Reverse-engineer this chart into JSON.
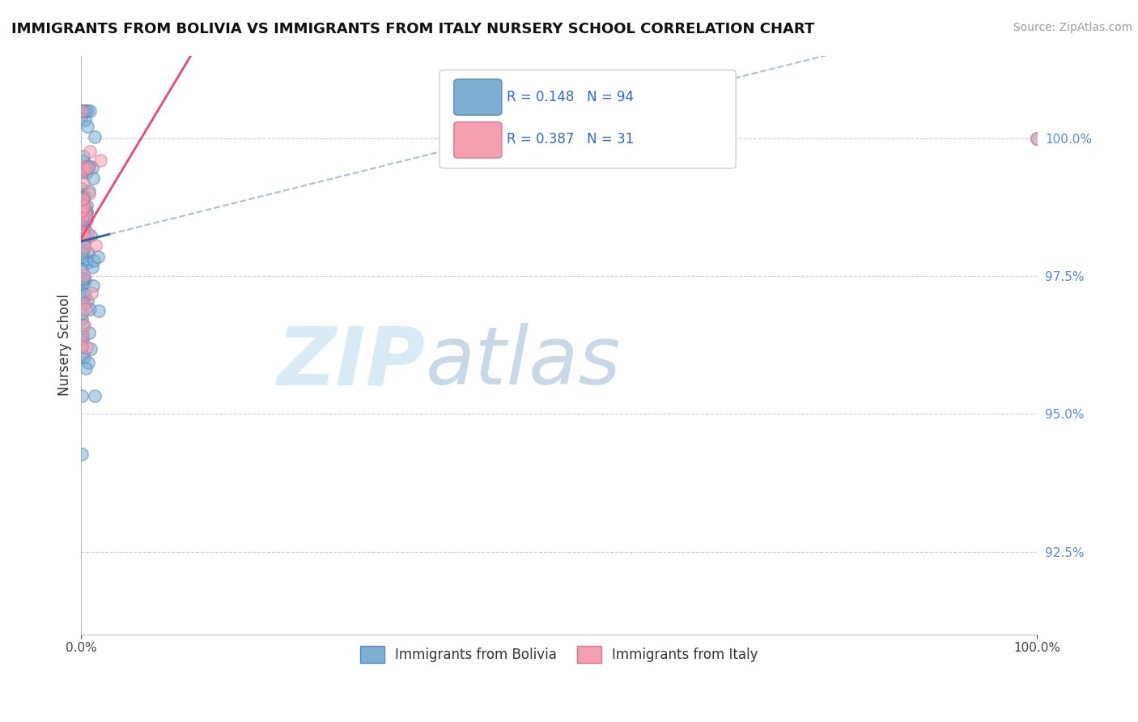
{
  "title": "IMMIGRANTS FROM BOLIVIA VS IMMIGRANTS FROM ITALY NURSERY SCHOOL CORRELATION CHART",
  "source": "Source: ZipAtlas.com",
  "ylabel": "Nursery School",
  "ytick_labels": [
    "92.5%",
    "95.0%",
    "97.5%",
    "100.0%"
  ],
  "ytick_values": [
    92.5,
    95.0,
    97.5,
    100.0
  ],
  "xmin": 0.0,
  "xmax": 100.0,
  "ymin": 91.0,
  "ymax": 101.5,
  "legend_label1": "Immigrants from Bolivia",
  "legend_label2": "Immigrants from Italy",
  "R1": 0.148,
  "N1": 94,
  "R2": 0.387,
  "N2": 31,
  "color_bolivia": "#7BAFD4",
  "color_italy": "#F4A0B0",
  "color_bolivia_edge": "#5588BB",
  "color_italy_edge": "#E07090",
  "trend_color_bolivia": "#3355AA",
  "trend_color_italy": "#EE4477",
  "trend_dash_color_bolivia": "#AABBDD",
  "background_color": "#FFFFFF",
  "watermark_color": "#D8EAF5",
  "watermark_zip": "ZIP",
  "watermark_atlas": "atlas"
}
